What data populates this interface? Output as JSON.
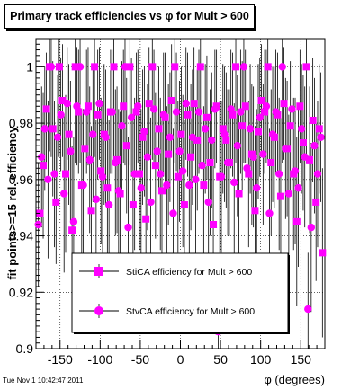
{
  "chart_data": {
    "type": "scatter",
    "title": "Primary track efficiencies vs φ for Mult > 600",
    "xlabel": "φ (degrees)",
    "ylabel": "fit points>=15 rel. efficiency",
    "xlim": [
      -180,
      180
    ],
    "ylim": [
      0.9,
      1.01
    ],
    "xticks": [
      -150,
      -100,
      -50,
      0,
      50,
      100,
      150
    ],
    "xtick_labels": [
      "-150",
      "-100",
      "-50",
      "0",
      "50",
      "100",
      "150"
    ],
    "yticks": [
      0.9,
      0.92,
      0.94,
      0.96,
      0.98,
      1.0
    ],
    "ytick_labels": [
      "0.9",
      "0.92",
      "0.94",
      "0.96",
      "0.98",
      "1"
    ],
    "grid": true,
    "legend_placement": "bottom-center",
    "colors": {
      "series_marker": "#ff00ff",
      "error_bars": "#000000"
    },
    "series": [
      {
        "name": "StiCA efficiency  for Mult > 600",
        "marker": "square",
        "x": [
          -175,
          -171,
          -167,
          -163,
          -159,
          -155,
          -151,
          -147,
          -143,
          -139,
          -135,
          -131,
          -127,
          -123,
          -119,
          -115,
          -111,
          -107,
          -103,
          -99,
          -95,
          -91,
          -87,
          -83,
          -79,
          -75,
          -71,
          -67,
          -63,
          -59,
          -55,
          -51,
          -47,
          -43,
          -39,
          -35,
          -31,
          -27,
          -23,
          -19,
          -15,
          -11,
          -7,
          -3,
          1,
          5,
          9,
          13,
          17,
          21,
          25,
          29,
          33,
          37,
          41,
          45,
          49,
          53,
          57,
          61,
          65,
          69,
          73,
          77,
          81,
          85,
          89,
          93,
          97,
          101,
          105,
          109,
          113,
          117,
          121,
          125,
          129,
          133,
          137,
          141,
          145,
          149,
          153,
          157,
          161,
          165,
          169,
          173,
          177
        ],
        "y": [
          0.948,
          0.965,
          0.985,
          1.0,
          0.978,
          0.952,
          1.0,
          0.988,
          0.962,
          0.976,
          0.942,
          1.0,
          0.984,
          0.958,
          0.971,
          0.986,
          0.949,
          1.0,
          0.983,
          0.963,
          0.976,
          0.957,
          0.984,
          1.0,
          0.967,
          0.955,
          0.986,
          0.972,
          1.0,
          0.951,
          0.984,
          0.962,
          0.975,
          0.946,
          0.987,
          1.0,
          0.965,
          0.978,
          0.956,
          0.982,
          0.969,
          0.988,
          1.0,
          0.961,
          0.976,
          0.951,
          0.983,
          0.968,
          0.987,
          0.974,
          1.0,
          0.958,
          0.982,
          0.966,
          0.944,
          0.986,
          0.961,
          0.978,
          0.974,
          0.966,
          0.983,
          1.0,
          0.955,
          0.979,
          0.986,
          0.962,
          0.969,
          0.949,
          0.977,
          0.988,
          0.984,
          1.0,
          0.966,
          0.975,
          0.983,
          0.954,
          0.987,
          0.971,
          0.979,
          0.962,
          0.945,
          0.986,
          0.973,
          1.0,
          0.967,
          0.981,
          0.952,
          0.978,
          0.934
        ],
        "yerr": [
          0.018,
          0.026,
          0.02,
          0.03,
          0.024,
          0.022,
          0.032,
          0.02,
          0.028,
          0.025,
          0.03,
          0.034,
          0.022,
          0.027,
          0.024,
          0.021,
          0.03,
          0.032,
          0.023,
          0.026,
          0.025,
          0.028,
          0.022,
          0.034,
          0.026,
          0.029,
          0.02,
          0.024,
          0.035,
          0.03,
          0.021,
          0.027,
          0.024,
          0.03,
          0.02,
          0.033,
          0.026,
          0.022,
          0.028,
          0.023,
          0.025,
          0.02,
          0.034,
          0.027,
          0.024,
          0.03,
          0.022,
          0.026,
          0.02,
          0.025,
          0.036,
          0.028,
          0.022,
          0.026,
          0.03,
          0.02,
          0.027,
          0.023,
          0.024,
          0.026,
          0.022,
          0.034,
          0.028,
          0.023,
          0.02,
          0.026,
          0.025,
          0.03,
          0.024,
          0.02,
          0.022,
          0.033,
          0.026,
          0.025,
          0.022,
          0.028,
          0.02,
          0.024,
          0.023,
          0.027,
          0.03,
          0.02,
          0.024,
          0.034,
          0.026,
          0.022,
          0.028,
          0.023,
          0.03
        ]
      },
      {
        "name": "StvCA efficiency  for Mult > 600",
        "marker": "circle",
        "x": [
          -177,
          -173,
          -169,
          -165,
          -161,
          -157,
          -153,
          -149,
          -145,
          -141,
          -137,
          -133,
          -129,
          -125,
          -121,
          -117,
          -113,
          -109,
          -105,
          -101,
          -97,
          -93,
          -89,
          -85,
          -81,
          -77,
          -73,
          -69,
          -65,
          -61,
          -57,
          -53,
          -49,
          -45,
          -41,
          -37,
          -33,
          -29,
          -25,
          -21,
          -17,
          -13,
          -9,
          -5,
          -1,
          3,
          7,
          11,
          15,
          19,
          23,
          27,
          31,
          35,
          39,
          43,
          47,
          51,
          55,
          59,
          63,
          67,
          71,
          75,
          79,
          83,
          87,
          91,
          95,
          99,
          103,
          107,
          111,
          115,
          119,
          123,
          127,
          131,
          135,
          139,
          143,
          147,
          151,
          155,
          159,
          163,
          167,
          171,
          175
        ],
        "y": [
          0.944,
          0.968,
          0.978,
          0.96,
          1.0,
          0.962,
          0.975,
          0.983,
          0.955,
          0.987,
          0.97,
          0.945,
          0.986,
          1.0,
          0.958,
          0.984,
          0.967,
          0.976,
          0.953,
          0.987,
          0.961,
          0.975,
          0.951,
          0.984,
          0.966,
          0.956,
          0.979,
          1.0,
          0.943,
          0.982,
          0.962,
          0.986,
          0.957,
          0.977,
          0.968,
          0.952,
          0.985,
          0.97,
          0.962,
          0.983,
          0.958,
          0.975,
          0.948,
          0.984,
          0.97,
          0.963,
          0.987,
          0.958,
          0.975,
          0.96,
          0.984,
          0.965,
          0.978,
          0.952,
          0.974,
          0.985,
          0.906,
          0.961,
          0.976,
          0.966,
          0.985,
          0.959,
          0.972,
          0.984,
          1.0,
          0.964,
          0.978,
          0.968,
          0.957,
          0.982,
          0.969,
          0.986,
          0.948,
          0.976,
          0.984,
          0.962,
          1.0,
          0.971,
          0.955,
          0.985,
          0.963,
          0.957,
          0.978,
          0.968,
          0.914,
          0.943,
          0.972,
          0.962,
          0.975
        ],
        "yerr": [
          0.022,
          0.025,
          0.022,
          0.028,
          0.032,
          0.026,
          0.022,
          0.02,
          0.028,
          0.02,
          0.025,
          0.03,
          0.021,
          0.034,
          0.027,
          0.022,
          0.026,
          0.024,
          0.028,
          0.02,
          0.027,
          0.024,
          0.03,
          0.022,
          0.026,
          0.029,
          0.023,
          0.035,
          0.032,
          0.021,
          0.027,
          0.02,
          0.028,
          0.023,
          0.026,
          0.03,
          0.021,
          0.025,
          0.027,
          0.022,
          0.028,
          0.023,
          0.03,
          0.021,
          0.025,
          0.027,
          0.02,
          0.028,
          0.024,
          0.027,
          0.022,
          0.026,
          0.023,
          0.03,
          0.024,
          0.021,
          0.026,
          0.027,
          0.024,
          0.026,
          0.021,
          0.028,
          0.025,
          0.022,
          0.034,
          0.026,
          0.023,
          0.025,
          0.028,
          0.021,
          0.025,
          0.02,
          0.03,
          0.024,
          0.022,
          0.027,
          0.034,
          0.025,
          0.028,
          0.021,
          0.026,
          0.028,
          0.023,
          0.025,
          0.02,
          0.03,
          0.024,
          0.026,
          0.023
        ]
      }
    ]
  },
  "footer": {
    "timestamp": "Tue Nov  1 10:42:47 2011"
  }
}
